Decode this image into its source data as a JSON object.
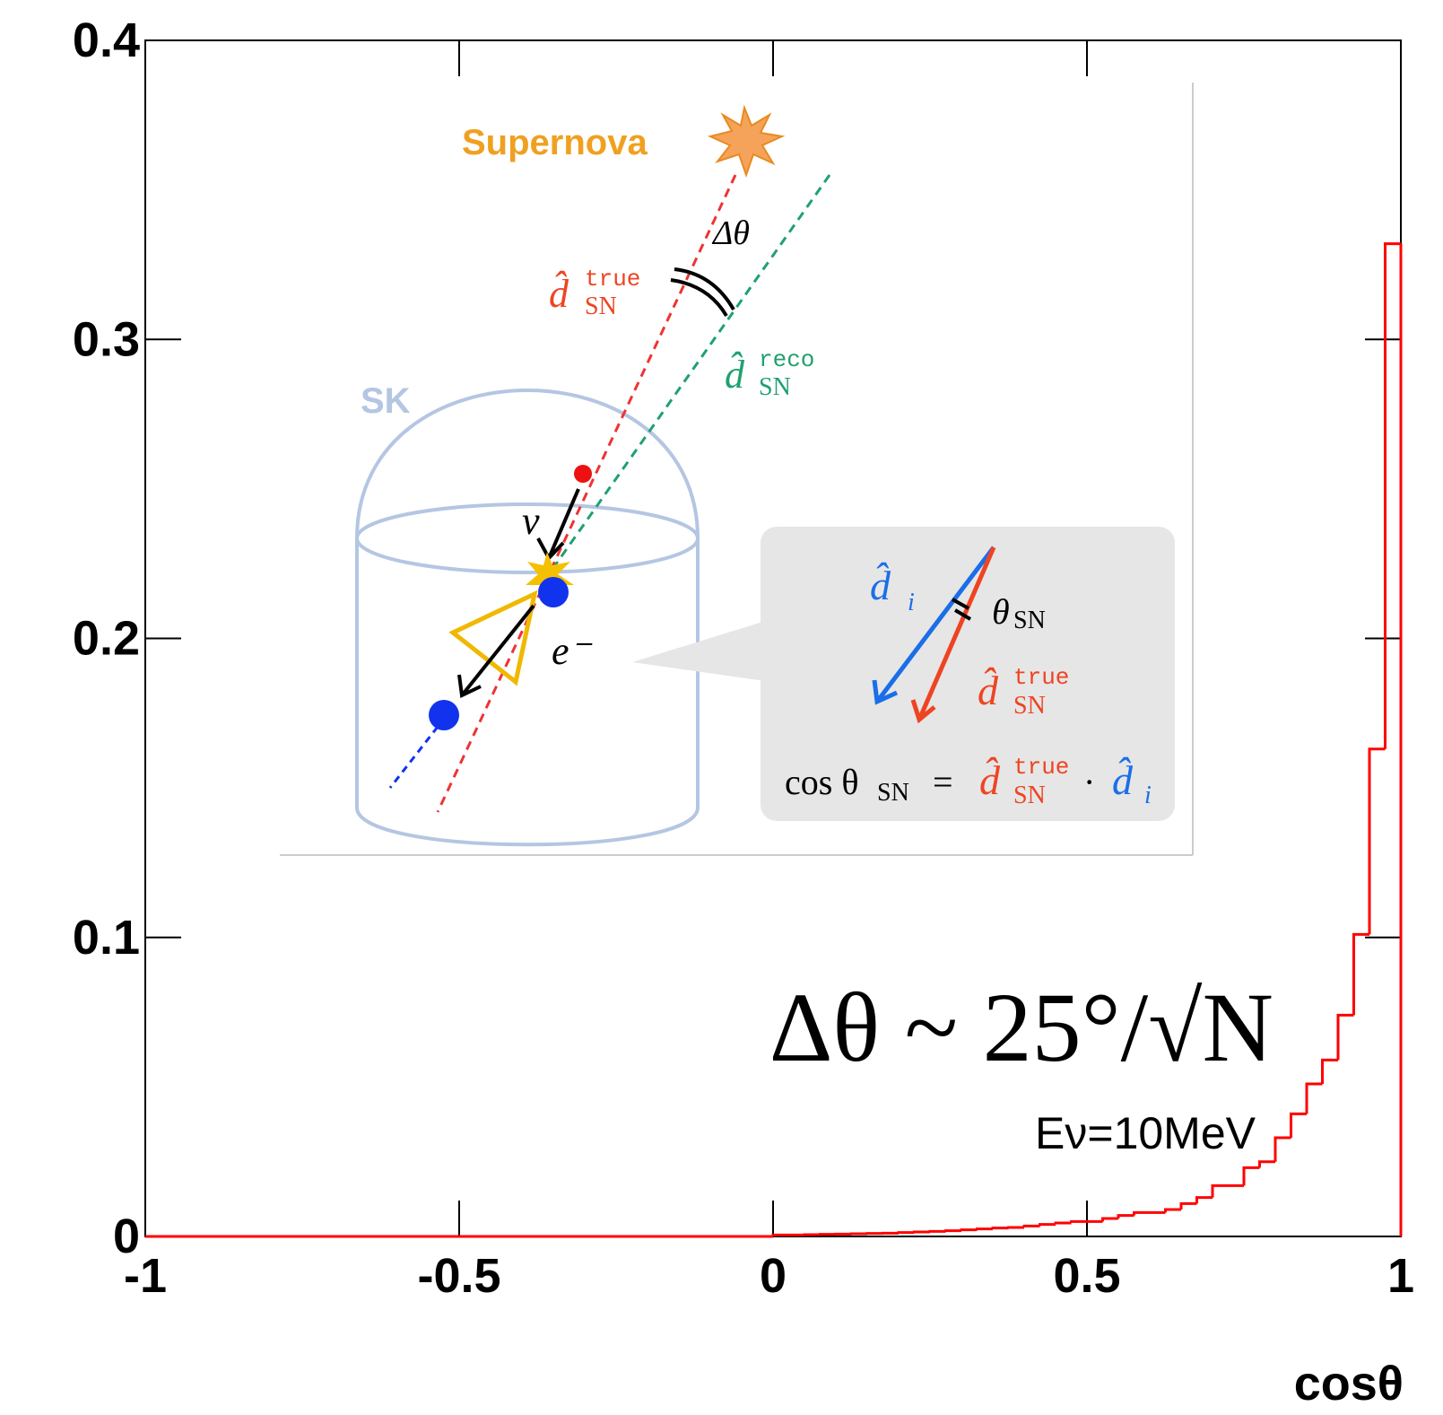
{
  "chart_data": {
    "type": "histogram",
    "xlabel": "cosθ",
    "bins": [
      -1,
      -0.975,
      -0.95,
      -0.925,
      -0.9,
      -0.875,
      -0.85,
      -0.825,
      -0.8,
      -0.775,
      -0.75,
      -0.725,
      -0.7,
      -0.675,
      -0.65,
      -0.625,
      -0.6,
      -0.575,
      -0.55,
      -0.525,
      -0.5,
      -0.475,
      -0.45,
      -0.425,
      -0.4,
      -0.375,
      -0.35,
      -0.325,
      -0.3,
      -0.275,
      -0.25,
      -0.225,
      -0.2,
      -0.175,
      -0.15,
      -0.125,
      -0.1,
      -0.075,
      -0.05,
      -0.025,
      0,
      0.025,
      0.05,
      0.075,
      0.1,
      0.125,
      0.15,
      0.175,
      0.2,
      0.225,
      0.25,
      0.275,
      0.3,
      0.325,
      0.35,
      0.375,
      0.4,
      0.425,
      0.45,
      0.475,
      0.5,
      0.525,
      0.55,
      0.575,
      0.6,
      0.625,
      0.65,
      0.675,
      0.7,
      0.725,
      0.75,
      0.775,
      0.8,
      0.825,
      0.85,
      0.875,
      0.9,
      0.925,
      0.95,
      0.975,
      1
    ],
    "values": [
      0,
      0,
      0,
      0,
      0,
      0,
      0,
      0,
      0,
      0,
      0,
      0,
      0,
      0,
      0,
      0,
      0,
      0,
      0,
      0,
      0,
      0,
      0,
      0,
      0,
      0,
      0,
      0,
      0,
      0,
      0,
      0,
      0,
      0,
      0,
      0,
      0,
      0,
      0,
      0,
      0.0005,
      0.0005,
      0.0006,
      0.0007,
      0.0008,
      0.0009,
      0.001,
      0.0011,
      0.0013,
      0.0015,
      0.0017,
      0.0019,
      0.0022,
      0.0025,
      0.0028,
      0.003,
      0.0035,
      0.004,
      0.0045,
      0.005,
      0.005,
      0.006,
      0.007,
      0.008,
      0.008,
      0.009,
      0.011,
      0.013,
      0.017,
      0.017,
      0.023,
      0.025,
      0.033,
      0.041,
      0.051,
      0.059,
      0.074,
      0.101,
      0.163,
      0.332
    ],
    "color": "#ff0000",
    "xlim": [
      -1,
      1
    ],
    "xticks": [
      -1,
      -0.5,
      0,
      0.5,
      1
    ],
    "ylim": [
      0,
      0.4
    ],
    "yticks": [
      0,
      0.1,
      0.2,
      0.3,
      0.4
    ],
    "annotations": [
      "Δθ ~ 25°/√N",
      "Eν=10MeV"
    ]
  },
  "inset": {
    "supernova": "Supernova",
    "sk": "SK",
    "delta_theta": "Δθ",
    "d_true": [
      "d̂",
      "true",
      "SN"
    ],
    "d_reco": [
      "d̂",
      "reco",
      "SN"
    ],
    "nu": "ν",
    "electron": "e⁻",
    "d_i": [
      "d̂",
      "i"
    ],
    "theta_sn": [
      "θ",
      "SN"
    ],
    "callout_true": [
      "d̂",
      "true",
      "SN"
    ],
    "formula": [
      "cos θ",
      "SN",
      "=",
      "d̂",
      "true",
      "SN",
      "·",
      "d̂",
      "i"
    ]
  }
}
